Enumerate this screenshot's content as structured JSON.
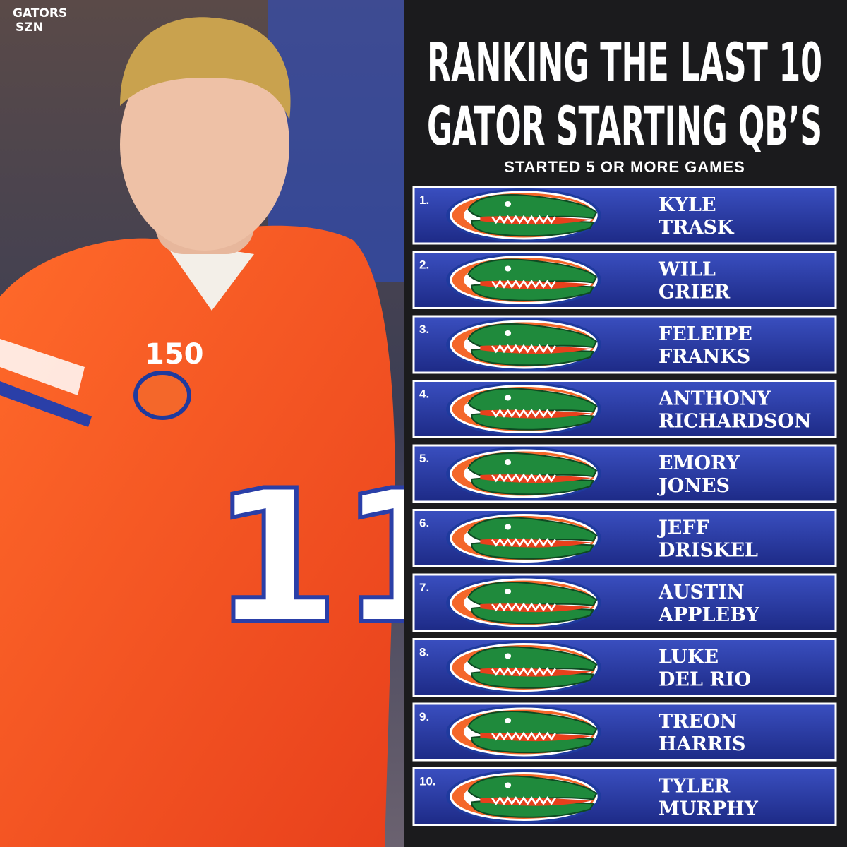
{
  "logo": {
    "line1": "GATORS",
    "line2": "SZN"
  },
  "title": {
    "line1": "RANKING THE LAST 10",
    "line2": "GATOR STARTING QB’S"
  },
  "subtitle": "STARTED 5 OR MORE GAMES",
  "photo": {
    "patch": "150",
    "jersey_number": "11"
  },
  "rankings": [
    {
      "rank": "1.",
      "first": "KYLE",
      "last": "TRASK"
    },
    {
      "rank": "2.",
      "first": "WILL",
      "last": "GRIER"
    },
    {
      "rank": "3.",
      "first": "FELEIPE",
      "last": "FRANKS"
    },
    {
      "rank": "4.",
      "first": "ANTHONY",
      "last": "RICHARDSON"
    },
    {
      "rank": "5.",
      "first": "EMORY",
      "last": "JONES"
    },
    {
      "rank": "6.",
      "first": "JEFF",
      "last": "DRISKEL"
    },
    {
      "rank": "7.",
      "first": "AUSTIN",
      "last": "APPLEBY"
    },
    {
      "rank": "8.",
      "first": "LUKE",
      "last": "DEL RIO"
    },
    {
      "rank": "9.",
      "first": "TREON",
      "last": "HARRIS"
    },
    {
      "rank": "10.",
      "first": "TYLER",
      "last": "MURPHY"
    }
  ]
}
